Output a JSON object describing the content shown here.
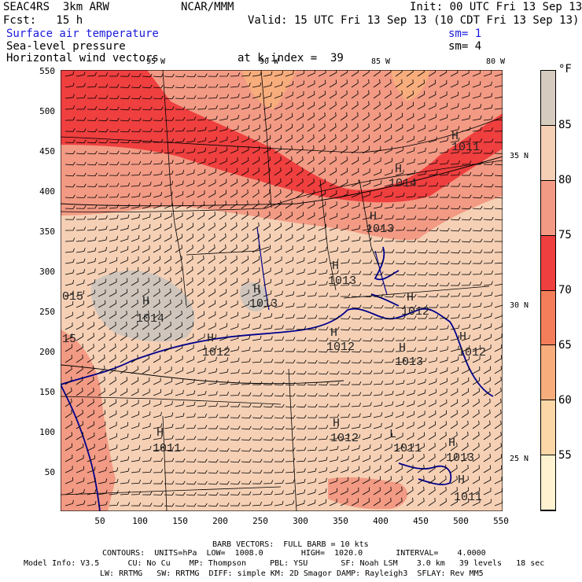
{
  "header": {
    "left1": "SEAC4RS  3km ARW",
    "center1": "NCAR/MMM",
    "right1": "Init: 00 UTC Fri 13 Sep 13",
    "left2": "Fcst:   15 h",
    "right2": "Valid: 15 UTC Fri 13 Sep 13 (10 CDT Fri 13 Sep 13)",
    "field1": "Surface air temperature",
    "field1_sm": "sm= 1",
    "field2": "Sea-level pressure",
    "field2_sm": "sm= 4",
    "field3": "Horizontal wind vectors",
    "level": "at k-index =  39"
  },
  "lon_labels": [
    "95 W",
    "90 W",
    "85 W",
    "80 W"
  ],
  "lat_labels": [
    "35 N",
    "30 N",
    "25 N"
  ],
  "y_ticks": [
    "550",
    "500",
    "450",
    "400",
    "350",
    "300",
    "250",
    "200",
    "150",
    "100",
    "50"
  ],
  "x_ticks": [
    "50",
    "100",
    "150",
    "200",
    "250",
    "300",
    "350",
    "400",
    "450",
    "500",
    "550"
  ],
  "colorbar": {
    "unit": "°F",
    "labels": [
      "85",
      "80",
      "75",
      "70",
      "65",
      "60",
      "55"
    ],
    "colors": [
      "#d6cbbf",
      "#f5d0b5",
      "#f29a84",
      "#ef3f3f",
      "#f47d5a",
      "#f8ad7d",
      "#fbd6a6",
      "#fff2d0"
    ]
  },
  "pressure_labels": [
    {
      "h": "H",
      "v": "1011"
    },
    {
      "h": "H",
      "v": "1014"
    },
    {
      "h": "H",
      "v": "1013"
    },
    {
      "h": "H",
      "v": "1013"
    },
    {
      "h": "H",
      "v": "1014"
    },
    {
      "h": "H",
      "v": "1013"
    },
    {
      "h": "H",
      "v": "1012"
    },
    {
      "h": "H",
      "v": "1012"
    },
    {
      "h": "H",
      "v": "1013"
    },
    {
      "h": "H",
      "v": "1012"
    },
    {
      "h": "H",
      "v": "1012"
    },
    {
      "h": "H",
      "v": "1011"
    },
    {
      "h": "H",
      "v": "1012"
    },
    {
      "h": "H",
      "v": "1013"
    },
    {
      "h": "L",
      "v": "1011"
    },
    {
      "h": "H",
      "v": "1011"
    },
    {
      "h": "",
      "v": "015"
    },
    {
      "h": "",
      "v": "15"
    }
  ],
  "footer": {
    "line1": "BARB VECTORS:  FULL BARB = 10 kts",
    "line2": "CONTOURS:  UNITS=hPa  LOW=  1008.0        HIGH=  1020.0       INTERVAL=    4.0000",
    "line3": "Model Info: V3.5      CU: No Cu    MP: Thompson     PBL: YSU       SF: Noah LSM    3.0 km   39 levels   18 sec",
    "line4": "LW: RRTMG   SW: RRTMG  DIFF: simple KM: 2D Smagor DAMP: Rayleigh3  SFLAY: Rev MM5"
  }
}
